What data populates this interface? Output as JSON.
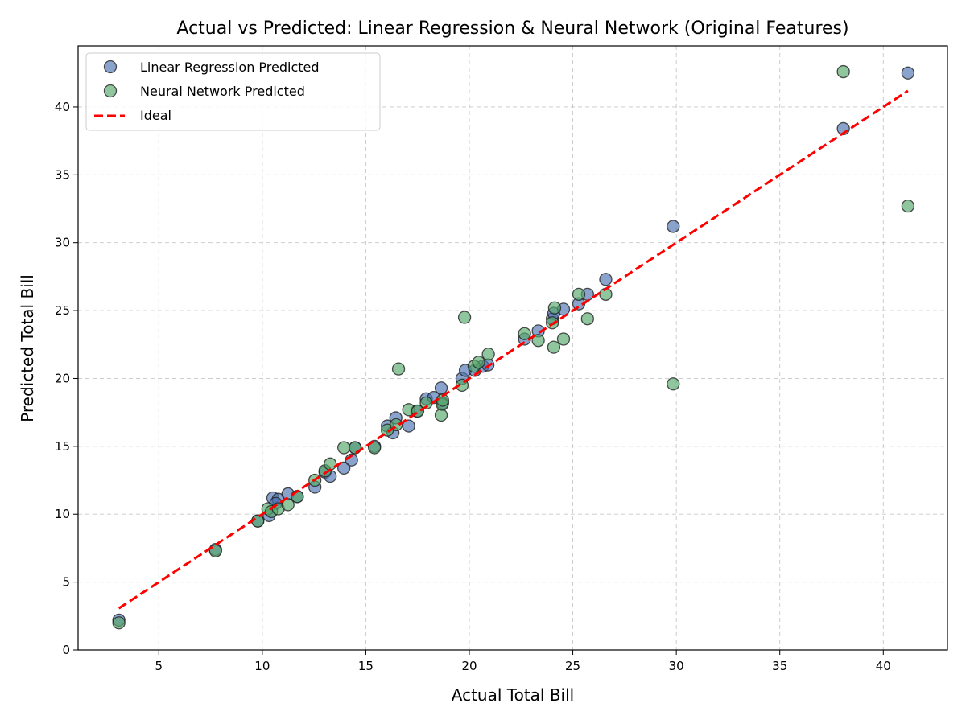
{
  "chart_data": {
    "type": "scatter",
    "title": "Actual vs Predicted: Linear Regression & Neural Network (Original Features)",
    "xlabel": "Actual Total Bill",
    "ylabel": "Predicted Total Bill",
    "xlim": [
      1.1,
      43.1
    ],
    "ylim": [
      0,
      44.5
    ],
    "xticks": [
      5,
      10,
      15,
      20,
      25,
      30,
      35,
      40
    ],
    "yticks": [
      0,
      5,
      10,
      15,
      20,
      25,
      30,
      35,
      40
    ],
    "grid": true,
    "legend_position": "top-left",
    "series": [
      {
        "name": "Linear Regression Predicted",
        "color": "#4c72b0",
        "kind": "scatter",
        "points": [
          [
            3.07,
            2.2
          ],
          [
            7.74,
            7.4
          ],
          [
            9.78,
            9.5
          ],
          [
            10.33,
            9.9
          ],
          [
            10.51,
            11.2
          ],
          [
            10.77,
            11.1
          ],
          [
            10.65,
            10.8
          ],
          [
            11.24,
            11.5
          ],
          [
            11.69,
            11.3
          ],
          [
            12.54,
            12.0
          ],
          [
            13.03,
            13.1
          ],
          [
            13.28,
            12.8
          ],
          [
            13.94,
            13.4
          ],
          [
            14.31,
            14.0
          ],
          [
            14.48,
            14.9
          ],
          [
            15.42,
            15.0
          ],
          [
            16.04,
            16.5
          ],
          [
            16.31,
            16.0
          ],
          [
            16.45,
            17.1
          ],
          [
            17.07,
            16.5
          ],
          [
            17.47,
            17.6
          ],
          [
            17.92,
            18.5
          ],
          [
            18.28,
            18.6
          ],
          [
            18.64,
            19.3
          ],
          [
            18.71,
            18.2
          ],
          [
            19.65,
            20.0
          ],
          [
            19.81,
            20.6
          ],
          [
            20.27,
            20.6
          ],
          [
            20.65,
            20.9
          ],
          [
            20.9,
            21.0
          ],
          [
            22.67,
            22.9
          ],
          [
            23.33,
            23.5
          ],
          [
            24.01,
            24.4
          ],
          [
            24.08,
            24.8
          ],
          [
            24.55,
            25.1
          ],
          [
            25.29,
            25.5
          ],
          [
            25.71,
            26.2
          ],
          [
            26.59,
            27.3
          ],
          [
            29.85,
            31.2
          ],
          [
            38.07,
            38.4
          ],
          [
            41.19,
            42.5
          ]
        ]
      },
      {
        "name": "Neural Network Predicted",
        "color": "#55a868",
        "kind": "scatter",
        "points": [
          [
            3.07,
            2.0
          ],
          [
            7.74,
            7.3
          ],
          [
            9.78,
            9.5
          ],
          [
            10.27,
            10.4
          ],
          [
            10.44,
            10.2
          ],
          [
            10.77,
            10.4
          ],
          [
            11.24,
            10.7
          ],
          [
            11.69,
            11.3
          ],
          [
            12.54,
            12.5
          ],
          [
            13.03,
            13.2
          ],
          [
            13.28,
            13.7
          ],
          [
            13.94,
            14.9
          ],
          [
            14.48,
            14.9
          ],
          [
            15.42,
            14.9
          ],
          [
            16.04,
            16.2
          ],
          [
            16.47,
            16.6
          ],
          [
            16.58,
            20.7
          ],
          [
            17.07,
            17.7
          ],
          [
            17.51,
            17.6
          ],
          [
            17.92,
            18.2
          ],
          [
            18.64,
            17.3
          ],
          [
            18.69,
            18.1
          ],
          [
            18.71,
            18.4
          ],
          [
            19.65,
            19.5
          ],
          [
            19.77,
            24.5
          ],
          [
            20.23,
            20.9
          ],
          [
            20.45,
            21.2
          ],
          [
            20.92,
            21.8
          ],
          [
            22.67,
            23.3
          ],
          [
            23.33,
            22.8
          ],
          [
            24.01,
            24.1
          ],
          [
            24.08,
            22.3
          ],
          [
            24.12,
            25.2
          ],
          [
            24.55,
            22.9
          ],
          [
            25.29,
            26.2
          ],
          [
            25.71,
            24.4
          ],
          [
            26.59,
            26.2
          ],
          [
            29.85,
            19.6
          ],
          [
            38.07,
            42.6
          ],
          [
            41.19,
            32.7
          ]
        ]
      },
      {
        "name": "Ideal",
        "color": "#ff0000",
        "kind": "line",
        "points": [
          [
            3.07,
            3.07
          ],
          [
            41.19,
            41.19
          ]
        ]
      }
    ]
  }
}
